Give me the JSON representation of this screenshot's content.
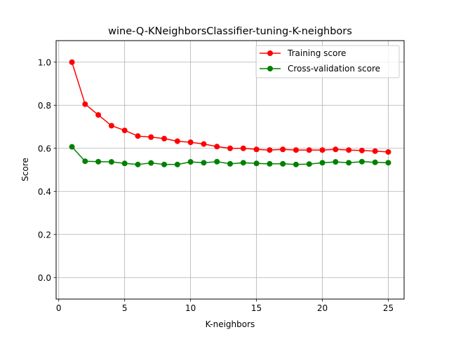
{
  "chart_data": {
    "type": "line",
    "title": "wine-Q-KNeighborsClassifier-tuning-K-neighbors",
    "xlabel": "K-neighbors",
    "ylabel": "Score",
    "xlim": [
      -0.2,
      26.2
    ],
    "ylim": [
      -0.1,
      1.1
    ],
    "x_ticks": [
      0,
      5,
      10,
      15,
      20,
      25
    ],
    "y_ticks": [
      0.0,
      0.2,
      0.4,
      0.6,
      0.8,
      1.0
    ],
    "x_tick_labels": [
      "0",
      "5",
      "10",
      "15",
      "20",
      "25"
    ],
    "y_tick_labels": [
      "0.0",
      "0.2",
      "0.4",
      "0.6",
      "0.8",
      "1.0"
    ],
    "grid": true,
    "legend_position": "top-right",
    "x": [
      1,
      2,
      3,
      4,
      5,
      6,
      7,
      8,
      9,
      10,
      11,
      12,
      13,
      14,
      15,
      16,
      17,
      18,
      19,
      20,
      21,
      22,
      23,
      24,
      25
    ],
    "series": [
      {
        "name": "Training score",
        "color": "#ff0000",
        "values": [
          1.0,
          0.805,
          0.755,
          0.705,
          0.683,
          0.657,
          0.652,
          0.645,
          0.633,
          0.628,
          0.62,
          0.608,
          0.6,
          0.6,
          0.595,
          0.592,
          0.595,
          0.592,
          0.592,
          0.592,
          0.595,
          0.592,
          0.59,
          0.587,
          0.583
        ]
      },
      {
        "name": "Cross-validation score",
        "color": "#008000",
        "values": [
          0.607,
          0.54,
          0.538,
          0.537,
          0.53,
          0.525,
          0.532,
          0.525,
          0.525,
          0.537,
          0.533,
          0.538,
          0.528,
          0.533,
          0.53,
          0.528,
          0.528,
          0.525,
          0.527,
          0.533,
          0.537,
          0.533,
          0.538,
          0.535,
          0.533
        ]
      }
    ]
  }
}
